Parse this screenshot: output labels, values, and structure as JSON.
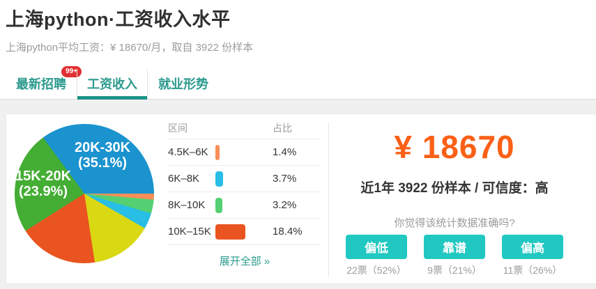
{
  "header": {
    "title": "上海python·工资收入水平",
    "subtitle": "上海python平均工资：¥ 18670/月，取自 3922 份样本"
  },
  "tabs": [
    {
      "label": "最新招聘",
      "badge": "99+",
      "active": false
    },
    {
      "label": "工资收入",
      "badge": "",
      "active": true
    },
    {
      "label": "就业形势",
      "badge": "",
      "active": false
    }
  ],
  "chart_data": {
    "type": "pie",
    "unit": "percent",
    "order": "clockwise-from-3-oclock",
    "slices": [
      {
        "label": "4.5K-6K",
        "value": 1.4,
        "color": "#f98e58"
      },
      {
        "label": "8K-10K",
        "value": 3.2,
        "color": "#54d072"
      },
      {
        "label": "6K-8K",
        "value": 3.7,
        "color": "#28bee5"
      },
      {
        "label": "",
        "value": 14.3,
        "color": "#d9d813"
      },
      {
        "label": "10K-15K",
        "value": 18.4,
        "color": "#ea5420"
      },
      {
        "label": "15K-20K",
        "value": 23.9,
        "color": "#44ad34"
      },
      {
        "label": "20K-30K",
        "value": 35.1,
        "color": "#1b93cf"
      }
    ],
    "on_chart_labels": [
      {
        "line1": "20K-30K",
        "line2": "(35.1%)"
      },
      {
        "line1": "15K-20K",
        "line2": "(23.9%)"
      }
    ],
    "legend_position": "right-table"
  },
  "table": {
    "columns": {
      "range": "区间",
      "share": "占比"
    },
    "rows": [
      {
        "range": "4.5K–6K",
        "pct": "1.4%",
        "value": 1.4,
        "color": "#f98e58"
      },
      {
        "range": "6K–8K",
        "pct": "3.7%",
        "value": 3.7,
        "color": "#28bee5"
      },
      {
        "range": "8K–10K",
        "pct": "3.2%",
        "value": 3.2,
        "color": "#54d072"
      },
      {
        "range": "10K–15K",
        "pct": "18.4%",
        "value": 18.4,
        "color": "#ea5420"
      }
    ],
    "expand_link": "展开全部 »"
  },
  "summary": {
    "salary": "¥ 18670",
    "sample_line": "近1年 3922 份样本 / 可信度：高",
    "question": "你觉得该统计数据准确吗?",
    "votes": [
      {
        "label": "偏低",
        "count": "22票（52%）"
      },
      {
        "label": "靠谱",
        "count": "9票（21%）"
      },
      {
        "label": "偏高",
        "count": "11票（26%）"
      }
    ]
  },
  "colors": {
    "accent_teal": "#2b9a8d",
    "tab_underline": "#1d9488",
    "badge_red": "#e22f31",
    "salary_orange": "#fa6016",
    "button_teal": "#20c8c1",
    "section_gray": "#f0f0f1"
  }
}
